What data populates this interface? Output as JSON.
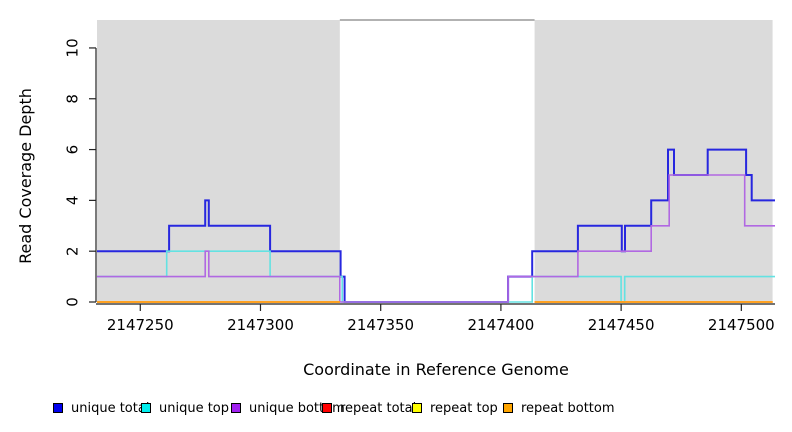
{
  "figure": {
    "title": "",
    "xlabel": "Coordinate in Reference Genome",
    "ylabel": "Read Coverage Depth"
  },
  "chart_data": {
    "type": "line",
    "subtype": "step-coverage-plot",
    "title": "",
    "xlabel": "Coordinate in Reference Genome",
    "ylabel": "Read Coverage Depth",
    "xlim": [
      2147232,
      2147514
    ],
    "ylim": [
      0,
      11.1
    ],
    "x_ticks": [
      2147250,
      2147300,
      2147350,
      2147400,
      2147450,
      2147500
    ],
    "y_ticks": [
      0,
      2,
      4,
      6,
      8,
      10
    ],
    "grid": false,
    "legend_position": "bottom",
    "axis_color": "#222222",
    "background_regions": [
      {
        "name": "covered-region-1",
        "x0": 2147232,
        "x1": 2147333,
        "color": "#dbdbdb"
      },
      {
        "name": "covered-region-2",
        "x0": 2147414,
        "x1": 2147513,
        "color": "#dbdbdb"
      }
    ],
    "gap_top_line": {
      "x0": 2147333,
      "x1": 2147414,
      "y": 11.1,
      "color": "#999999"
    },
    "series": [
      {
        "name": "unique total",
        "color": "#2727df",
        "width": 2.0,
        "segments": [
          {
            "points": [
              [
                2147232,
                2
              ],
              [
                2147262,
                3
              ],
              [
                2147277,
                4
              ],
              [
                2147278.5,
                3
              ],
              [
                2147304,
                2
              ],
              [
                2147333.3,
                1
              ],
              [
                2147335,
                0
              ],
              [
                2147403,
                1
              ],
              [
                2147413,
                2
              ],
              [
                2147432,
                3
              ],
              [
                2147450.3,
                2
              ],
              [
                2147451.6,
                3
              ],
              [
                2147462.5,
                4
              ],
              [
                2147469.5,
                6
              ],
              [
                2147472,
                5
              ],
              [
                2147486,
                6
              ],
              [
                2147502,
                5
              ],
              [
                2147504.3,
                4
              ]
            ],
            "x_end": 2147514
          }
        ]
      },
      {
        "name": "unique top",
        "color": "#63e2e2",
        "width": 1.6,
        "segments": [
          {
            "points": [
              [
                2147232,
                1
              ],
              [
                2147261,
                2
              ],
              [
                2147304,
                1
              ],
              [
                2147334,
                0
              ],
              [
                2147413,
                1
              ],
              [
                2147450,
                0
              ],
              [
                2147451.5,
                1
              ]
            ],
            "x_end": 2147514
          }
        ]
      },
      {
        "name": "unique bottom",
        "color": "#b168e2",
        "width": 1.6,
        "segments": [
          {
            "points": [
              [
                2147232,
                1
              ],
              [
                2147277,
                2
              ],
              [
                2147278.5,
                1
              ],
              [
                2147333,
                0
              ],
              [
                2147403,
                1
              ],
              [
                2147432,
                2
              ],
              [
                2147462.5,
                3
              ],
              [
                2147470,
                5
              ],
              [
                2147501.4,
                3
              ]
            ],
            "x_end": 2147514
          }
        ]
      },
      {
        "name": "repeat total",
        "color": "#ff0000",
        "width": 1.6,
        "segments": [
          {
            "points": [
              [
                2147232,
                0
              ]
            ],
            "x_end": 2147333
          },
          {
            "points": [
              [
                2147414,
                0
              ]
            ],
            "x_end": 2147513
          }
        ]
      },
      {
        "name": "repeat top",
        "color": "#ffff00",
        "width": 1.6,
        "segments": [
          {
            "points": [
              [
                2147232,
                0
              ]
            ],
            "x_end": 2147333
          },
          {
            "points": [
              [
                2147414,
                0
              ]
            ],
            "x_end": 2147513
          }
        ]
      },
      {
        "name": "repeat bottom",
        "color": "#ff9e1f",
        "width": 1.8,
        "segments": [
          {
            "points": [
              [
                2147232,
                0
              ]
            ],
            "x_end": 2147333
          },
          {
            "points": [
              [
                2147414,
                0
              ]
            ],
            "x_end": 2147513
          }
        ]
      }
    ],
    "legend": [
      {
        "label": "unique total",
        "color": "#0000ee"
      },
      {
        "label": "unique top",
        "color": "#00eeee"
      },
      {
        "label": "unique bottom",
        "color": "#a020f0"
      },
      {
        "label": "repeat total",
        "color": "#ff0000"
      },
      {
        "label": "repeat top",
        "color": "#ffff00"
      },
      {
        "label": "repeat bottom",
        "color": "#ffa500"
      }
    ]
  }
}
